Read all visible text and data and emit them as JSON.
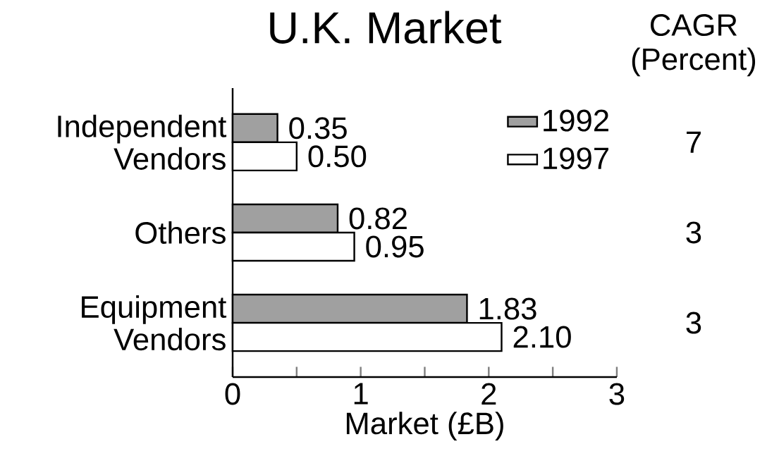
{
  "chart_data": {
    "type": "bar",
    "orientation": "horizontal",
    "title": "U.K. Market",
    "xlabel": "Market (£B)",
    "categories": [
      "Independent Vendors",
      "Others",
      "Equipment Vendors"
    ],
    "series": [
      {
        "name": "1992",
        "color": "#a0a0a0",
        "values": [
          0.35,
          0.82,
          1.83
        ],
        "value_labels": [
          "0.35",
          "0.82",
          "1.83"
        ]
      },
      {
        "name": "1997",
        "color": "#ffffff",
        "values": [
          0.5,
          0.95,
          2.1
        ],
        "value_labels": [
          "0.50",
          "0.95",
          "2.10"
        ]
      }
    ],
    "xlim": [
      0,
      3
    ],
    "xticks": [
      0,
      {
        "value": 0.5,
        "label": null
      },
      1,
      {
        "value": 1.5,
        "label": null
      },
      2,
      {
        "value": 2.5,
        "label": null
      },
      3
    ],
    "legend": "top right",
    "annotations": [
      "CAGR (Percent)",
      "7",
      "3",
      "3"
    ]
  }
}
